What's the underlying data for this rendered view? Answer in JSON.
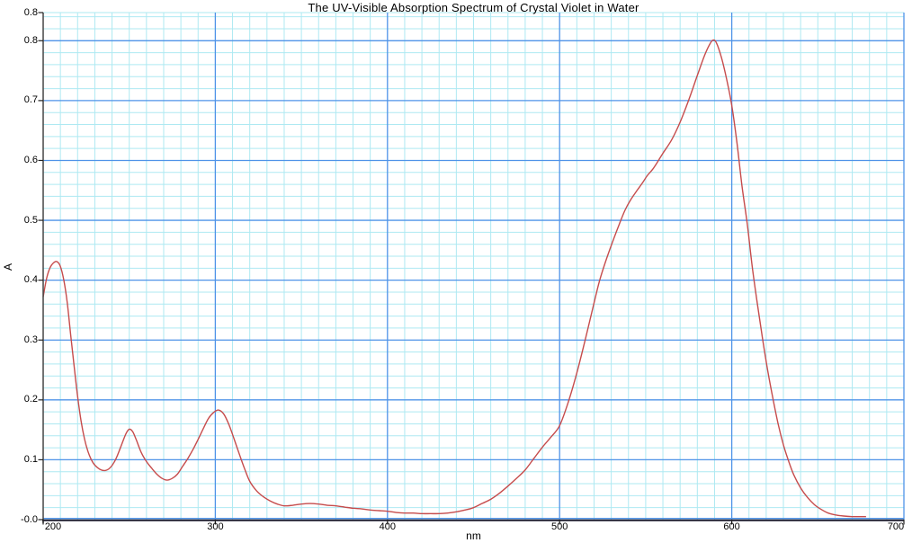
{
  "chart_data": {
    "type": "line",
    "title": "The UV-Visible Absorption Spectrum of Crystal Violet in Water",
    "xlabel": "nm",
    "ylabel": "A",
    "xlim": [
      200,
      700
    ],
    "ylim": [
      0,
      0.847
    ],
    "grid": "both",
    "minor_step_x_nm": 10,
    "minor_step_y_A": 0.02,
    "major_step_x_nm": 100,
    "major_step_y_A": 0.1,
    "x_ticks": {
      "values": [
        200,
        300,
        400,
        500,
        600,
        700
      ],
      "labels": [
        "200",
        "300",
        "400",
        "500",
        "600",
        "700"
      ]
    },
    "y_ticks": {
      "values": [
        0.847,
        0.8,
        0.7,
        0.6,
        0.5,
        0.4,
        0.3,
        0.2,
        0.1,
        0.0
      ],
      "labels": [
        "0.8",
        "0.8",
        "0.7",
        "0.6",
        "0.5",
        "0.4",
        "0.3",
        "0.2",
        "0.1",
        "-0.0"
      ]
    },
    "colors": {
      "background": "#ffffff",
      "minor_grid": "#aee9f2",
      "major_grid": "#4f93e8",
      "curve": "#c64c4c",
      "axis_spine_left": "#454545",
      "axis_spine_bottom": "#1c1c2e",
      "tick": "#222222",
      "text": "#000000"
    },
    "annotations": {
      "peaks": [
        {
          "nm": 208,
          "A": 0.43
        },
        {
          "nm": 250,
          "A": 0.15
        },
        {
          "nm": 302,
          "A": 0.18
        },
        {
          "nm": 589,
          "A": 0.8
        }
      ],
      "shoulder": {
        "nm": 550,
        "A": 0.57
      }
    },
    "series": [
      {
        "color": "#c64c4c",
        "points": [
          [
            200,
            0.372
          ],
          [
            202,
            0.403
          ],
          [
            204,
            0.421
          ],
          [
            206,
            0.429
          ],
          [
            208,
            0.431
          ],
          [
            210,
            0.423
          ],
          [
            212,
            0.4
          ],
          [
            214,
            0.362
          ],
          [
            216,
            0.308
          ],
          [
            218,
            0.256
          ],
          [
            220,
            0.206
          ],
          [
            222,
            0.165
          ],
          [
            224,
            0.135
          ],
          [
            226,
            0.114
          ],
          [
            228,
            0.1
          ],
          [
            230,
            0.091
          ],
          [
            233,
            0.084
          ],
          [
            236,
            0.082
          ],
          [
            239,
            0.087
          ],
          [
            242,
            0.1
          ],
          [
            245,
            0.121
          ],
          [
            248,
            0.143
          ],
          [
            250,
            0.151
          ],
          [
            252,
            0.147
          ],
          [
            254,
            0.134
          ],
          [
            257,
            0.112
          ],
          [
            260,
            0.097
          ],
          [
            263,
            0.086
          ],
          [
            266,
            0.076
          ],
          [
            269,
            0.069
          ],
          [
            272,
            0.066
          ],
          [
            275,
            0.069
          ],
          [
            278,
            0.076
          ],
          [
            281,
            0.089
          ],
          [
            284,
            0.102
          ],
          [
            287,
            0.117
          ],
          [
            290,
            0.134
          ],
          [
            293,
            0.152
          ],
          [
            296,
            0.169
          ],
          [
            299,
            0.179
          ],
          [
            302,
            0.183
          ],
          [
            305,
            0.176
          ],
          [
            308,
            0.158
          ],
          [
            311,
            0.134
          ],
          [
            314,
            0.109
          ],
          [
            317,
            0.085
          ],
          [
            320,
            0.064
          ],
          [
            324,
            0.048
          ],
          [
            328,
            0.038
          ],
          [
            332,
            0.031
          ],
          [
            336,
            0.026
          ],
          [
            340,
            0.023
          ],
          [
            345,
            0.024
          ],
          [
            350,
            0.026
          ],
          [
            355,
            0.027
          ],
          [
            360,
            0.026
          ],
          [
            365,
            0.024
          ],
          [
            370,
            0.023
          ],
          [
            375,
            0.021
          ],
          [
            380,
            0.019
          ],
          [
            385,
            0.018
          ],
          [
            390,
            0.016
          ],
          [
            395,
            0.015
          ],
          [
            400,
            0.014
          ],
          [
            405,
            0.012
          ],
          [
            410,
            0.011
          ],
          [
            415,
            0.011
          ],
          [
            420,
            0.01
          ],
          [
            425,
            0.01
          ],
          [
            430,
            0.01
          ],
          [
            435,
            0.011
          ],
          [
            440,
            0.013
          ],
          [
            445,
            0.016
          ],
          [
            450,
            0.02
          ],
          [
            455,
            0.027
          ],
          [
            460,
            0.034
          ],
          [
            465,
            0.044
          ],
          [
            470,
            0.056
          ],
          [
            475,
            0.069
          ],
          [
            480,
            0.083
          ],
          [
            485,
            0.102
          ],
          [
            490,
            0.121
          ],
          [
            495,
            0.138
          ],
          [
            500,
            0.157
          ],
          [
            505,
            0.196
          ],
          [
            510,
            0.245
          ],
          [
            515,
            0.302
          ],
          [
            520,
            0.362
          ],
          [
            523,
            0.397
          ],
          [
            526,
            0.425
          ],
          [
            530,
            0.458
          ],
          [
            535,
            0.496
          ],
          [
            538,
            0.517
          ],
          [
            541,
            0.533
          ],
          [
            545,
            0.55
          ],
          [
            548,
            0.562
          ],
          [
            551,
            0.575
          ],
          [
            554,
            0.585
          ],
          [
            557,
            0.598
          ],
          [
            560,
            0.612
          ],
          [
            565,
            0.634
          ],
          [
            570,
            0.664
          ],
          [
            575,
            0.701
          ],
          [
            580,
            0.742
          ],
          [
            584,
            0.774
          ],
          [
            587,
            0.793
          ],
          [
            589,
            0.801
          ],
          [
            591,
            0.797
          ],
          [
            594,
            0.772
          ],
          [
            597,
            0.736
          ],
          [
            600,
            0.692
          ],
          [
            603,
            0.63
          ],
          [
            606,
            0.556
          ],
          [
            609,
            0.494
          ],
          [
            612,
            0.42
          ],
          [
            615,
            0.358
          ],
          [
            618,
            0.3
          ],
          [
            621,
            0.247
          ],
          [
            624,
            0.201
          ],
          [
            627,
            0.159
          ],
          [
            630,
            0.125
          ],
          [
            633,
            0.098
          ],
          [
            636,
            0.075
          ],
          [
            640,
            0.053
          ],
          [
            644,
            0.037
          ],
          [
            648,
            0.025
          ],
          [
            652,
            0.017
          ],
          [
            656,
            0.011
          ],
          [
            660,
            0.008
          ],
          [
            665,
            0.006
          ],
          [
            670,
            0.005
          ],
          [
            674,
            0.005
          ],
          [
            678,
            0.005
          ]
        ]
      }
    ]
  }
}
